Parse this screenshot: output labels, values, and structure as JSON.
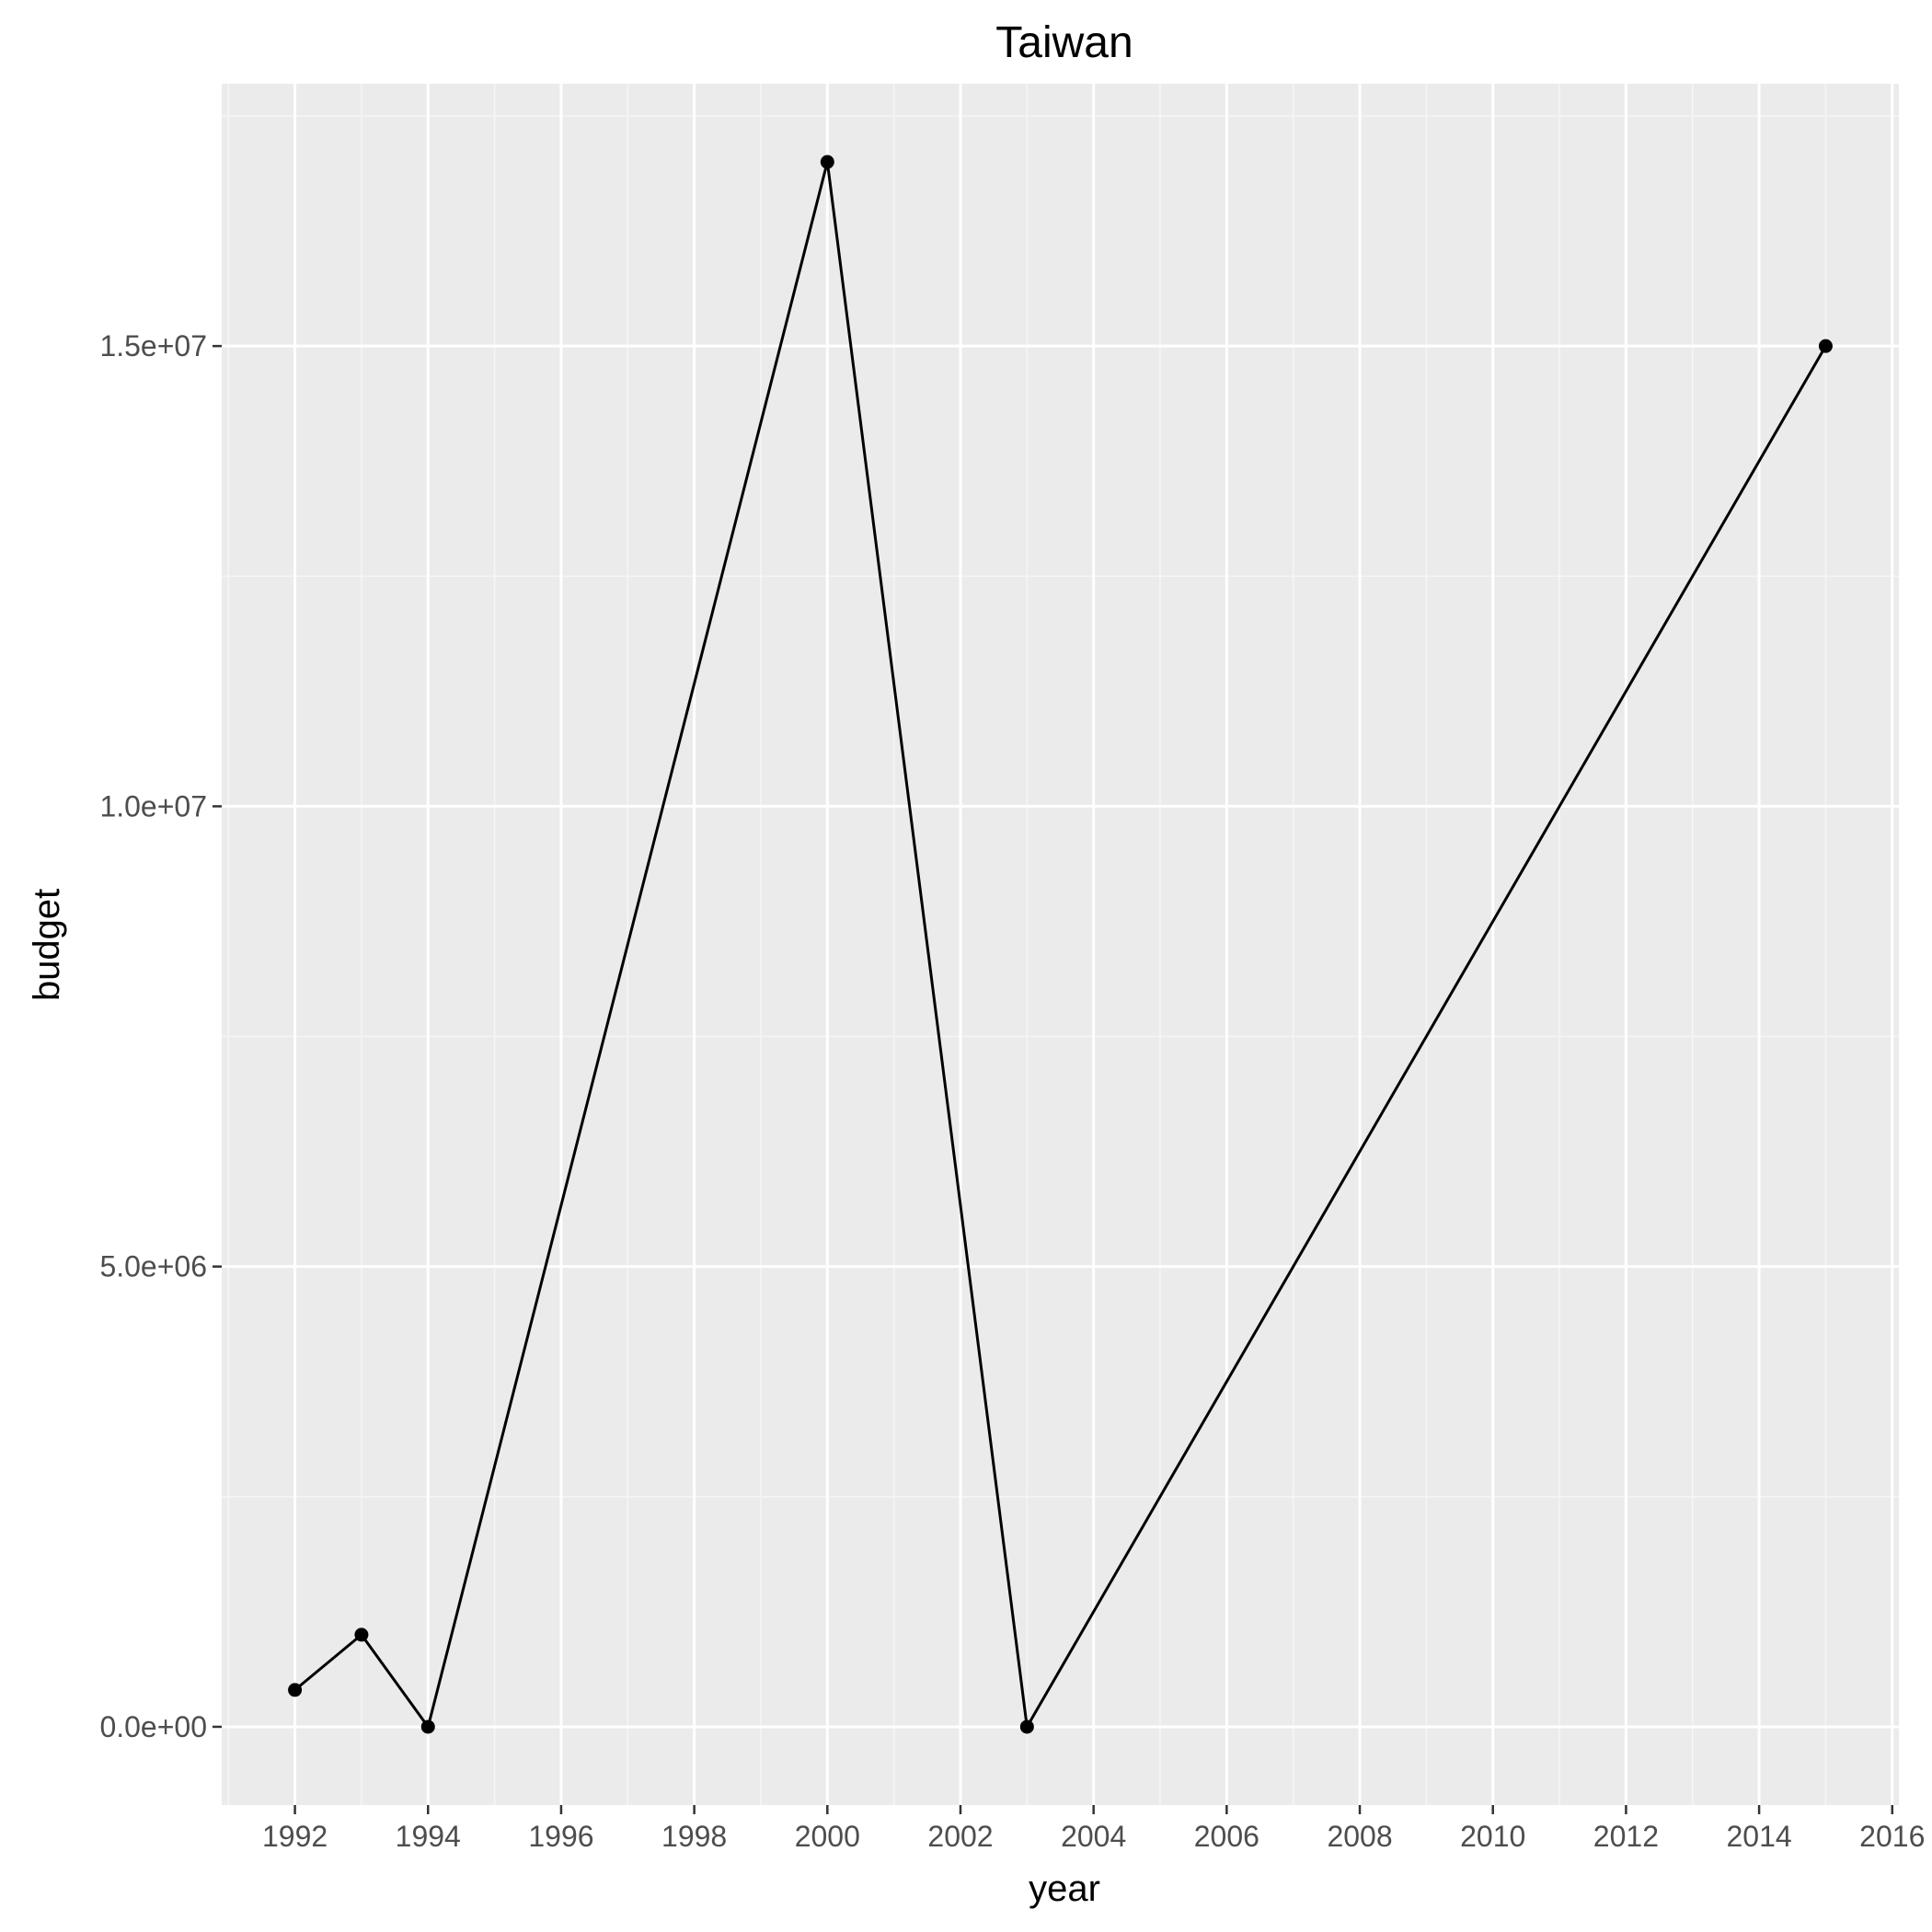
{
  "chart_data": {
    "type": "line",
    "title": "Taiwan",
    "xlabel": "year",
    "ylabel": "budget",
    "x": [
      1992,
      1993,
      1994,
      2000,
      2003,
      2015
    ],
    "series": [
      {
        "values": [
          400000,
          1000000,
          0,
          17000000,
          0,
          15000000
        ]
      }
    ],
    "xlim": [
      1990.9,
      2016.1
    ],
    "ylim": [
      -850000,
      17850000
    ],
    "x_ticks": [
      1992,
      1994,
      1996,
      1998,
      2000,
      2002,
      2004,
      2006,
      2008,
      2010,
      2012,
      2014,
      2016
    ],
    "x_tick_labels": [
      "1992",
      "1994",
      "1996",
      "1998",
      "2000",
      "2002",
      "2004",
      "2006",
      "2008",
      "2010",
      "2012",
      "2014",
      "2016"
    ],
    "y_ticks": [
      0,
      5000000,
      10000000,
      15000000
    ],
    "y_tick_labels": [
      "0.0e+00",
      "5.0e+06",
      "1.0e+07",
      "1.5e+07"
    ],
    "grid": true,
    "legend": "none",
    "colors": {
      "panel_background": "#ebebeb",
      "grid_major": "#ffffff",
      "grid_minor": "#f5f5f5",
      "line": "#000000",
      "point": "#000000",
      "tick_mark": "#333333"
    }
  }
}
